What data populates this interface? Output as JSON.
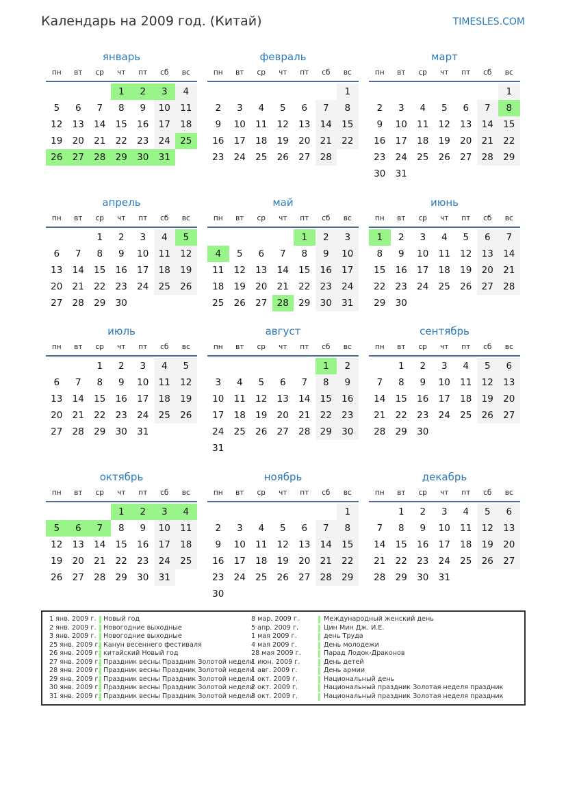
{
  "header": {
    "title": "Календарь на 2009 год. (Китай)",
    "brand": "TIMESLES.COM"
  },
  "weekdays": [
    "пн",
    "вт",
    "ср",
    "чт",
    "пт",
    "сб",
    "вс"
  ],
  "colors": {
    "accent": "#2a7ab8",
    "holiday": "#99f58a",
    "weekend": "#f3f3f3"
  },
  "months": [
    {
      "name": "январь",
      "first_weekday_index": 3,
      "days": 31,
      "holidays": [
        1,
        2,
        3,
        25,
        26,
        27,
        28,
        29,
        30,
        31
      ]
    },
    {
      "name": "февраль",
      "first_weekday_index": 6,
      "days": 28,
      "holidays": []
    },
    {
      "name": "март",
      "first_weekday_index": 6,
      "days": 31,
      "holidays": [
        8
      ]
    },
    {
      "name": "апрель",
      "first_weekday_index": 2,
      "days": 30,
      "holidays": [
        5
      ]
    },
    {
      "name": "май",
      "first_weekday_index": 4,
      "days": 31,
      "holidays": [
        1,
        4,
        28
      ]
    },
    {
      "name": "июнь",
      "first_weekday_index": 0,
      "days": 30,
      "holidays": [
        1
      ]
    },
    {
      "name": "июль",
      "first_weekday_index": 2,
      "days": 31,
      "holidays": []
    },
    {
      "name": "август",
      "first_weekday_index": 5,
      "days": 31,
      "holidays": [
        1
      ]
    },
    {
      "name": "сентябрь",
      "first_weekday_index": 1,
      "days": 30,
      "holidays": []
    },
    {
      "name": "октябрь",
      "first_weekday_index": 3,
      "days": 31,
      "holidays": [
        1,
        2,
        3,
        4,
        5,
        6,
        7
      ]
    },
    {
      "name": "ноябрь",
      "first_weekday_index": 6,
      "days": 30,
      "holidays": []
    },
    {
      "name": "декабрь",
      "first_weekday_index": 1,
      "days": 31,
      "holidays": []
    }
  ],
  "holidays_list": [
    {
      "date": "1 янв. 2009 г.",
      "name": "Новый год"
    },
    {
      "date": "2 янв. 2009 г.",
      "name": "Новогодние выходные"
    },
    {
      "date": "3 янв. 2009 г.",
      "name": "Новогодние выходные"
    },
    {
      "date": "25 янв. 2009 г.",
      "name": "Канун весеннего фестиваля"
    },
    {
      "date": "26 янв. 2009 г.",
      "name": "китайский Новый год"
    },
    {
      "date": "27 янв. 2009 г.",
      "name": "Праздник весны Праздник Золотой недели"
    },
    {
      "date": "28 янв. 2009 г.",
      "name": "Праздник весны Праздник Золотой недели"
    },
    {
      "date": "29 янв. 2009 г.",
      "name": "Праздник весны Праздник Золотой недели"
    },
    {
      "date": "30 янв. 2009 г.",
      "name": "Праздник весны Праздник Золотой недели"
    },
    {
      "date": "31 янв. 2009 г.",
      "name": "Праздник весны Праздник Золотой недели"
    },
    {
      "date": "8 мар. 2009 г.",
      "name": "Международный женский день"
    },
    {
      "date": "5 апр. 2009 г.",
      "name": "Цин Мин Дж. И.Е."
    },
    {
      "date": "1 мая 2009 г.",
      "name": "день Труда"
    },
    {
      "date": "4 мая 2009 г.",
      "name": "День молодежи"
    },
    {
      "date": "28 мая 2009 г.",
      "name": "Парад Лодок-Драконов"
    },
    {
      "date": "1 июн. 2009 г.",
      "name": "День детей"
    },
    {
      "date": "1 авг. 2009 г.",
      "name": "День армии"
    },
    {
      "date": "1 окт. 2009 г.",
      "name": "Национальный день"
    },
    {
      "date": "2 окт. 2009 г.",
      "name": "Национальный праздник Золотая неделя праздник"
    },
    {
      "date": "3 окт. 2009 г.",
      "name": "Национальный праздник Золотая неделя праздник"
    }
  ]
}
